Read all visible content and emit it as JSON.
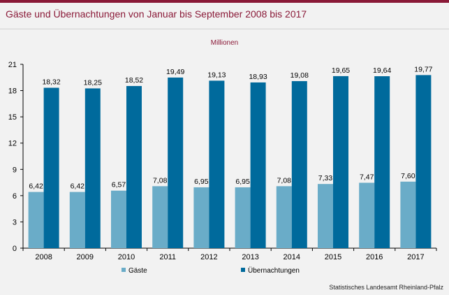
{
  "title": "Gäste und Übernachtungen von Januar bis September 2008 bis 2017",
  "source": "Statistisches Landesamt Rheinland-Pfalz",
  "colors": {
    "accent": "#8a1a38",
    "gaeste": "#6aacc8",
    "uebernachtungen": "#006a9c"
  },
  "chart_data": {
    "type": "bar",
    "unit_label": "Millionen",
    "categories": [
      "2008",
      "2009",
      "2010",
      "2011",
      "2012",
      "2013",
      "2014",
      "2015",
      "2016",
      "2017"
    ],
    "series": [
      {
        "name": "Gäste",
        "values": [
          6.42,
          6.42,
          6.57,
          7.08,
          6.95,
          6.95,
          7.08,
          7.33,
          7.47,
          7.6
        ],
        "labels": [
          "6,42",
          "6,42",
          "6,57",
          "7,08",
          "6,95",
          "6,95",
          "7,08",
          "7,33",
          "7,47",
          "7,60"
        ]
      },
      {
        "name": "Übernachtungen",
        "values": [
          18.32,
          18.25,
          18.52,
          19.49,
          19.13,
          18.93,
          19.08,
          19.65,
          19.64,
          19.77
        ],
        "labels": [
          "18,32",
          "18,25",
          "18,52",
          "19,49",
          "19,13",
          "18,93",
          "19,08",
          "19,65",
          "19,64",
          "19,77"
        ]
      }
    ],
    "yticks": [
      "0",
      "3",
      "6",
      "9",
      "12",
      "15",
      "18",
      "21"
    ],
    "ylim": [
      0,
      21
    ],
    "grid": false,
    "legend": "bottom"
  }
}
